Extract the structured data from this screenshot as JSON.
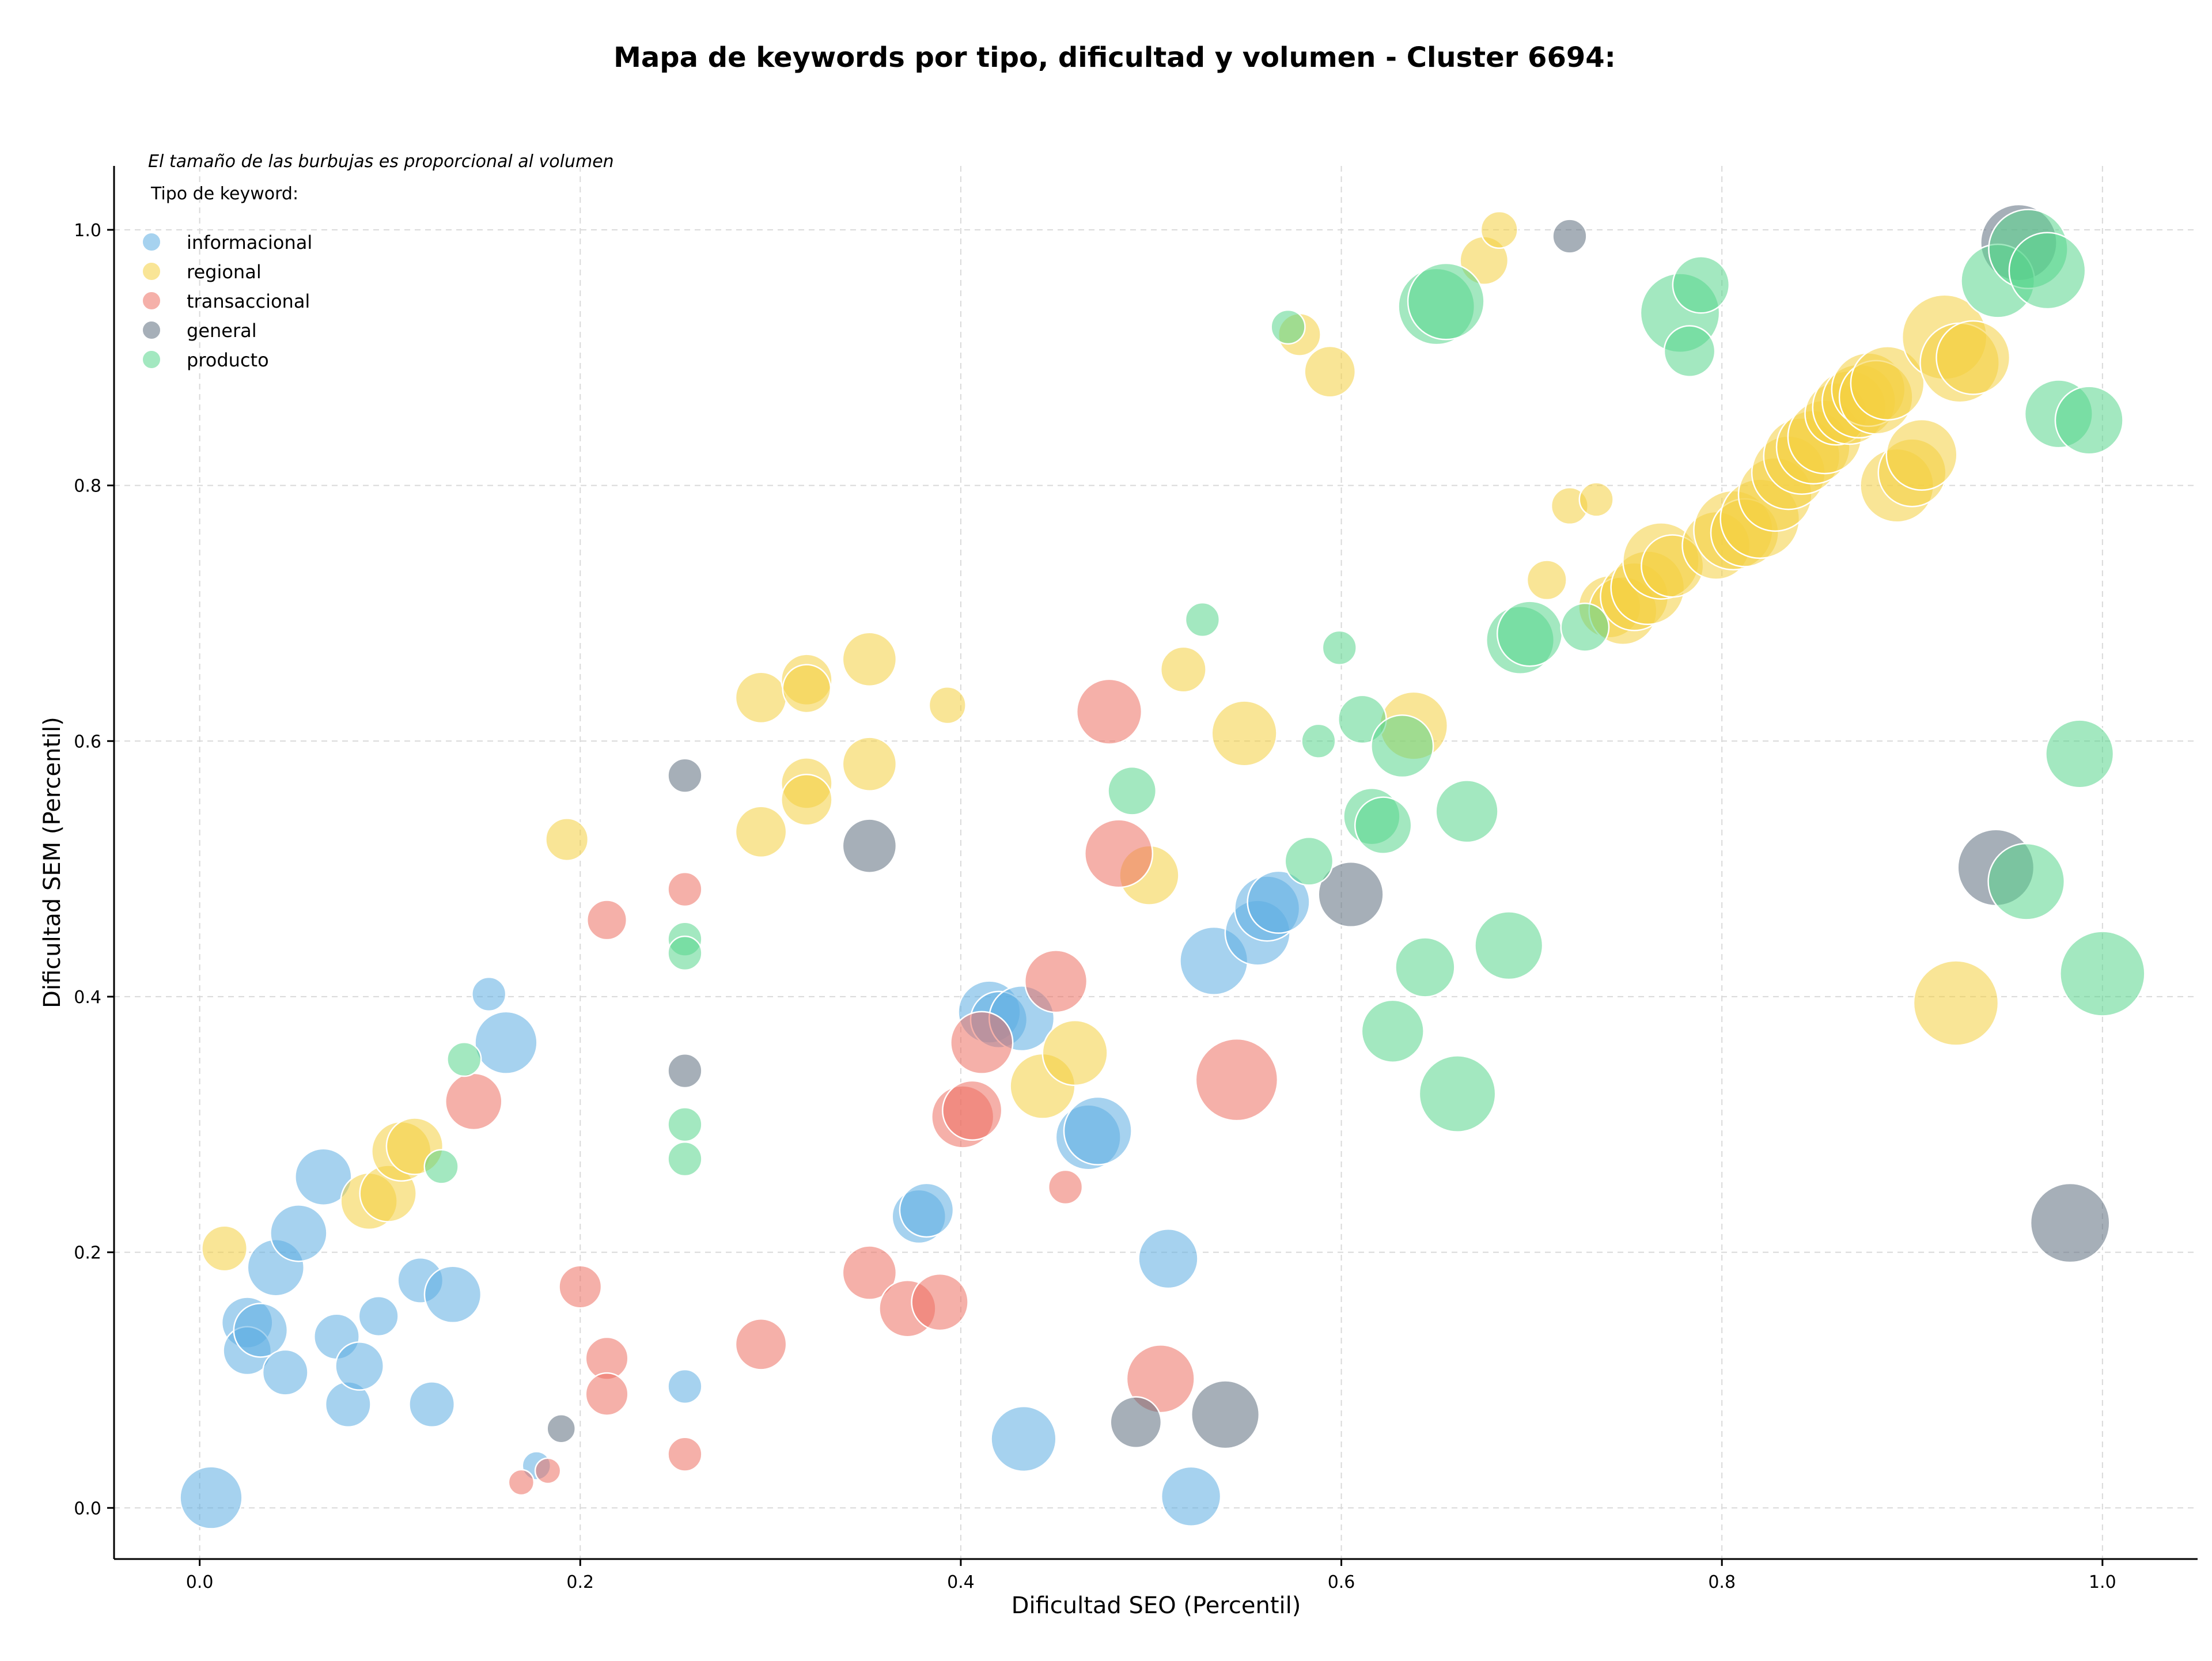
{
  "chart_data": {
    "type": "scatter",
    "title": "Mapa de keywords por tipo, dificultad y volumen - Cluster 6694:",
    "xlabel": "Dificultad SEO (Percentil)",
    "ylabel": "Dificultad SEM (Percentil)",
    "note": "El tamaño de las burbujas es proporcional al volumen",
    "legend_title": "Tipo de keyword:",
    "legend_position": "top-left",
    "xlim": [
      -0.045,
      1.05
    ],
    "ylim": [
      -0.04,
      1.05
    ],
    "xticks": [
      0.0,
      0.2,
      0.4,
      0.6,
      0.8,
      1.0
    ],
    "xtick_labels": [
      "0.0",
      "0.2",
      "0.4",
      "0.6",
      "0.8",
      "1.0"
    ],
    "yticks": [
      0.0,
      0.2,
      0.4,
      0.6,
      0.8,
      1.0
    ],
    "ytick_labels": [
      "0.0",
      "0.2",
      "0.4",
      "0.6",
      "0.8",
      "1.0"
    ],
    "grid": true,
    "opacity": 0.55,
    "series": [
      {
        "name": "informacional",
        "color": "#5dade2",
        "points": [
          [
            0.006,
            0.008,
            22
          ],
          [
            0.025,
            0.145,
            18
          ],
          [
            0.025,
            0.123,
            17
          ],
          [
            0.032,
            0.139,
            19
          ],
          [
            0.04,
            0.188,
            20
          ],
          [
            0.045,
            0.106,
            16
          ],
          [
            0.072,
            0.134,
            16
          ],
          [
            0.078,
            0.081,
            16
          ],
          [
            0.084,
            0.111,
            17
          ],
          [
            0.094,
            0.15,
            14
          ],
          [
            0.116,
            0.178,
            16
          ],
          [
            0.122,
            0.081,
            16
          ],
          [
            0.133,
            0.167,
            20
          ],
          [
            0.152,
            0.402,
            12
          ],
          [
            0.161,
            0.364,
            22
          ],
          [
            0.052,
            0.215,
            20
          ],
          [
            0.065,
            0.259,
            20
          ],
          [
            0.255,
            0.095,
            12
          ],
          [
            0.378,
            0.228,
            19
          ],
          [
            0.382,
            0.233,
            19
          ],
          [
            0.415,
            0.388,
            22
          ],
          [
            0.42,
            0.382,
            20
          ],
          [
            0.432,
            0.383,
            23
          ],
          [
            0.433,
            0.054,
            23
          ],
          [
            0.467,
            0.29,
            23
          ],
          [
            0.472,
            0.295,
            24
          ],
          [
            0.509,
            0.195,
            21
          ],
          [
            0.521,
            0.009,
            21
          ],
          [
            0.533,
            0.428,
            24
          ],
          [
            0.556,
            0.45,
            23
          ],
          [
            0.561,
            0.469,
            23
          ],
          [
            0.567,
            0.474,
            22
          ],
          [
            0.177,
            0.033,
            10
          ]
        ]
      },
      {
        "name": "regional",
        "color": "#f4d03f",
        "points": [
          [
            0.013,
            0.203,
            16
          ],
          [
            0.089,
            0.24,
            20
          ],
          [
            0.099,
            0.246,
            20
          ],
          [
            0.106,
            0.279,
            21
          ],
          [
            0.113,
            0.283,
            20
          ],
          [
            0.193,
            0.523,
            15
          ],
          [
            0.295,
            0.634,
            18
          ],
          [
            0.295,
            0.529,
            18
          ],
          [
            0.319,
            0.648,
            18
          ],
          [
            0.319,
            0.641,
            17
          ],
          [
            0.319,
            0.567,
            18
          ],
          [
            0.319,
            0.554,
            18
          ],
          [
            0.352,
            0.664,
            19
          ],
          [
            0.352,
            0.582,
            19
          ],
          [
            0.393,
            0.628,
            13
          ],
          [
            0.443,
            0.33,
            23
          ],
          [
            0.46,
            0.356,
            23
          ],
          [
            0.499,
            0.495,
            21
          ],
          [
            0.517,
            0.656,
            16
          ],
          [
            0.549,
            0.606,
            23
          ],
          [
            0.578,
            0.918,
            15
          ],
          [
            0.594,
            0.889,
            18
          ],
          [
            0.638,
            0.612,
            24
          ],
          [
            0.675,
            0.976,
            17
          ],
          [
            0.683,
            1.0,
            13
          ],
          [
            0.708,
            0.726,
            14
          ],
          [
            0.72,
            0.784,
            13
          ],
          [
            0.734,
            0.789,
            12
          ],
          [
            0.741,
            0.705,
            22
          ],
          [
            0.748,
            0.702,
            24
          ],
          [
            0.754,
            0.713,
            24
          ],
          [
            0.761,
            0.72,
            26
          ],
          [
            0.768,
            0.741,
            27
          ],
          [
            0.774,
            0.737,
            22
          ],
          [
            0.797,
            0.753,
            24
          ],
          [
            0.806,
            0.765,
            28
          ],
          [
            0.812,
            0.763,
            24
          ],
          [
            0.82,
            0.774,
            28
          ],
          [
            0.828,
            0.793,
            26
          ],
          [
            0.835,
            0.81,
            26
          ],
          [
            0.842,
            0.823,
            27
          ],
          [
            0.848,
            0.83,
            26
          ],
          [
            0.854,
            0.838,
            26
          ],
          [
            0.86,
            0.856,
            22
          ],
          [
            0.867,
            0.861,
            26
          ],
          [
            0.872,
            0.866,
            26
          ],
          [
            0.877,
            0.875,
            26
          ],
          [
            0.881,
            0.869,
            26
          ],
          [
            0.887,
            0.88,
            26
          ],
          [
            0.892,
            0.8,
            26
          ],
          [
            0.9,
            0.81,
            24
          ],
          [
            0.905,
            0.824,
            25
          ],
          [
            0.917,
            0.916,
            30
          ],
          [
            0.925,
            0.896,
            28
          ],
          [
            0.932,
            0.9,
            26
          ],
          [
            0.923,
            0.395,
            30
          ]
        ]
      },
      {
        "name": "transaccional",
        "color": "#ec7063",
        "points": [
          [
            0.144,
            0.318,
            20
          ],
          [
            0.169,
            0.02,
            9
          ],
          [
            0.183,
            0.029,
            9
          ],
          [
            0.2,
            0.173,
            15
          ],
          [
            0.214,
            0.46,
            14
          ],
          [
            0.214,
            0.117,
            15
          ],
          [
            0.214,
            0.089,
            15
          ],
          [
            0.255,
            0.484,
            12
          ],
          [
            0.255,
            0.042,
            12
          ],
          [
            0.295,
            0.128,
            18
          ],
          [
            0.352,
            0.184,
            19
          ],
          [
            0.372,
            0.156,
            20
          ],
          [
            0.389,
            0.161,
            20
          ],
          [
            0.401,
            0.306,
            22
          ],
          [
            0.406,
            0.311,
            21
          ],
          [
            0.411,
            0.364,
            22
          ],
          [
            0.45,
            0.412,
            22
          ],
          [
            0.455,
            0.251,
            12
          ],
          [
            0.478,
            0.623,
            23
          ],
          [
            0.483,
            0.512,
            24
          ],
          [
            0.505,
            0.101,
            24
          ],
          [
            0.545,
            0.335,
            29
          ]
        ]
      },
      {
        "name": "general",
        "color": "#5d6d7e",
        "points": [
          [
            0.19,
            0.062,
            10
          ],
          [
            0.255,
            0.573,
            12
          ],
          [
            0.255,
            0.342,
            12
          ],
          [
            0.352,
            0.518,
            19
          ],
          [
            0.492,
            0.067,
            18
          ],
          [
            0.539,
            0.073,
            24
          ],
          [
            0.605,
            0.48,
            23
          ],
          [
            0.72,
            0.995,
            12
          ],
          [
            0.944,
            0.501,
            27
          ],
          [
            0.956,
            0.99,
            27
          ],
          [
            0.983,
            0.223,
            28
          ]
        ]
      },
      {
        "name": "producto",
        "color": "#58d68d",
        "points": [
          [
            0.127,
            0.267,
            12
          ],
          [
            0.139,
            0.351,
            12
          ],
          [
            0.255,
            0.445,
            12
          ],
          [
            0.255,
            0.434,
            12
          ],
          [
            0.255,
            0.3,
            12
          ],
          [
            0.255,
            0.273,
            12
          ],
          [
            0.49,
            0.561,
            17
          ],
          [
            0.527,
            0.695,
            12
          ],
          [
            0.572,
            0.924,
            12
          ],
          [
            0.583,
            0.506,
            17
          ],
          [
            0.588,
            0.6,
            12
          ],
          [
            0.599,
            0.673,
            12
          ],
          [
            0.611,
            0.617,
            17
          ],
          [
            0.616,
            0.541,
            20
          ],
          [
            0.622,
            0.534,
            20
          ],
          [
            0.627,
            0.373,
            22
          ],
          [
            0.632,
            0.596,
            22
          ],
          [
            0.644,
            0.423,
            21
          ],
          [
            0.65,
            0.94,
            27
          ],
          [
            0.655,
            0.944,
            27
          ],
          [
            0.661,
            0.324,
            27
          ],
          [
            0.666,
            0.545,
            22
          ],
          [
            0.688,
            0.44,
            24
          ],
          [
            0.694,
            0.679,
            24
          ],
          [
            0.699,
            0.684,
            23
          ],
          [
            0.728,
            0.689,
            17
          ],
          [
            0.778,
            0.935,
            28
          ],
          [
            0.783,
            0.905,
            18
          ],
          [
            0.789,
            0.957,
            20
          ],
          [
            0.945,
            0.96,
            26
          ],
          [
            0.96,
            0.49,
            27
          ],
          [
            0.961,
            0.985,
            28
          ],
          [
            0.971,
            0.968,
            27
          ],
          [
            0.977,
            0.856,
            24
          ],
          [
            0.988,
            0.59,
            24
          ],
          [
            0.993,
            0.851,
            24
          ],
          [
            1.0,
            0.418,
            30
          ]
        ]
      }
    ]
  }
}
